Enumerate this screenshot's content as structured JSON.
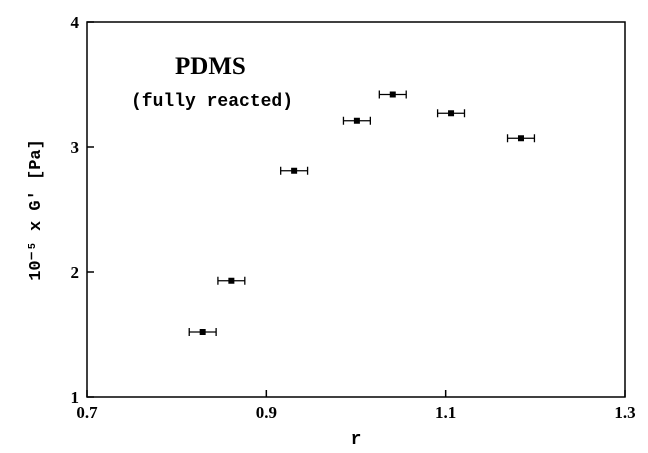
{
  "chart_data": {
    "type": "scatter",
    "annotations": [
      "PDMS",
      "(fully reacted)"
    ],
    "xlabel": "r",
    "ylabel": "10⁻⁵ x G′  [Pa]",
    "series": [
      {
        "color": "#000000",
        "x": [
          0.829,
          0.861,
          0.931,
          1.001,
          1.041,
          1.106,
          1.184
        ],
        "y": [
          1.52,
          1.93,
          2.81,
          3.21,
          3.42,
          3.27,
          3.07
        ],
        "xerr": [
          0.015,
          0.015,
          0.015,
          0.015,
          0.015,
          0.015,
          0.015
        ]
      }
    ],
    "xlim": [
      0.7,
      1.3
    ],
    "xticks": [
      0.7,
      0.9,
      1.1,
      1.3
    ],
    "ylim": [
      1,
      4
    ],
    "yticks": [
      1,
      2,
      3,
      4
    ],
    "grid": false
  }
}
